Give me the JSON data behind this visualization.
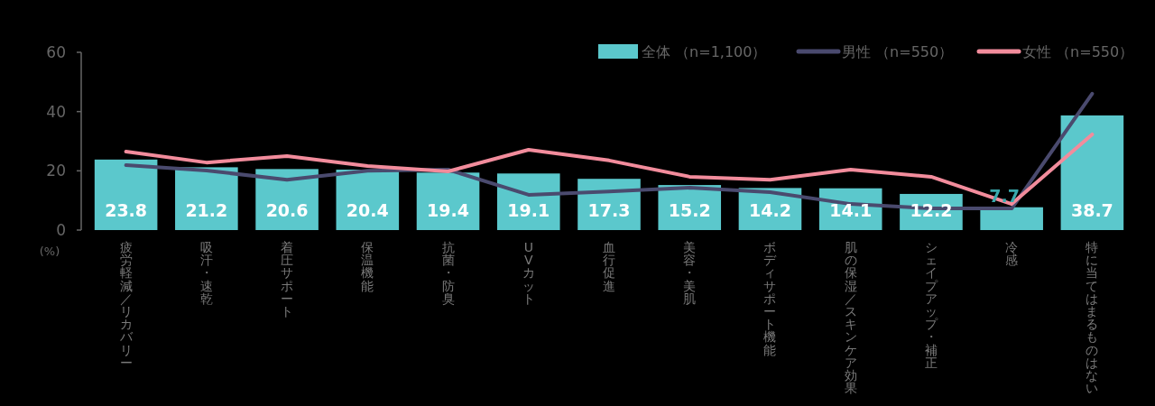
{
  "chart_data": {
    "type": "bar",
    "ylabel": "(%)",
    "ylim": [
      0,
      60
    ],
    "yticks": [
      0,
      20,
      40,
      60
    ],
    "legend": "top right",
    "categories": [
      "疲労軽減／リカバリー",
      "吸汗・速乾",
      "着圧サポート",
      "保温機能",
      "抗菌・防臭",
      "UVカット",
      "血行促進",
      "美容・美肌",
      "ボディサポート機能",
      "肌の保湿／スキンケア効果",
      "シェイプアップ・補正",
      "冷感",
      "特に当てはまるものはない"
    ],
    "series": [
      {
        "name": "全体 （n=1,100）",
        "color": "#5bc8cc",
        "values": [
          23.8,
          21.2,
          20.6,
          20.4,
          19.4,
          19.1,
          17.3,
          15.2,
          14.2,
          14.1,
          12.2,
          7.7,
          38.7
        ],
        "value_labels": [
          "23.8",
          "21.2",
          "20.6",
          "20.4",
          "19.4",
          "19.1",
          "17.3",
          "15.2",
          "14.2",
          "14.1",
          "12.2",
          "7.7",
          "38.7"
        ]
      },
      {
        "name": "男性 （n=550）",
        "type": "line",
        "color": "#4a4a6e",
        "values": [
          21.9,
          20.1,
          17,
          20,
          20.4,
          11.9,
          13,
          14.3,
          12.8,
          8.8,
          7.3,
          7.3,
          46
        ]
      },
      {
        "name": "女性 （n=550）",
        "type": "line",
        "color": "#f28c9c",
        "values": [
          26.5,
          22.8,
          25,
          21.6,
          19.8,
          27.1,
          23.5,
          18,
          17,
          20.4,
          18,
          8.8,
          32.3
        ]
      }
    ]
  }
}
